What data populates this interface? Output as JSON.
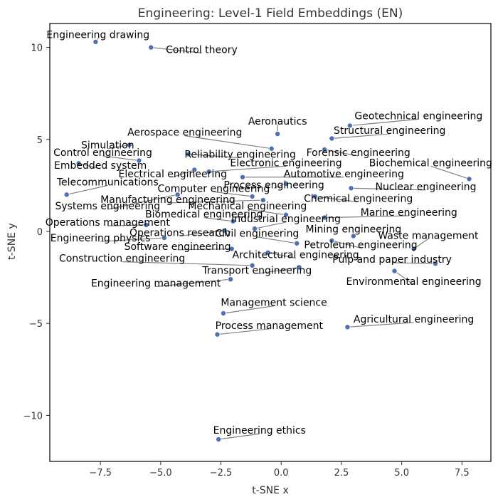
{
  "chart_data": {
    "type": "scatter",
    "title": "Engineering: Level-1 Field Embeddings (EN)",
    "xlabel": "t-SNE x",
    "ylabel": "t-SNE y",
    "xlim": [
      -9.6,
      8.7
    ],
    "ylim": [
      -12.5,
      11.3
    ],
    "xticks": [
      -7.5,
      -5.0,
      -2.5,
      0.0,
      2.5,
      5.0,
      7.5
    ],
    "xtick_labels": [
      "−7.5",
      "−5.0",
      "−2.5",
      "0.0",
      "2.5",
      "5.0",
      "7.5"
    ],
    "yticks": [
      -10,
      -5,
      0,
      5,
      10
    ],
    "ytick_labels": [
      "−10",
      "−5",
      "0",
      "5",
      "10"
    ],
    "grid": false,
    "point_color": "#4c72b0",
    "points": [
      {
        "label": "Engineering drawing",
        "x": -7.7,
        "y": 10.3,
        "lx": -7.6,
        "ly": 10.5
      },
      {
        "label": "Control theory",
        "x": -5.4,
        "y": 10.0,
        "lx": -3.3,
        "ly": 9.7
      },
      {
        "label": "Aeronautics",
        "x": -0.15,
        "y": 5.3,
        "lx": -0.15,
        "ly": 5.8
      },
      {
        "label": "Geotechnical engineering",
        "x": 2.85,
        "y": 5.75,
        "lx": 5.7,
        "ly": 6.1
      },
      {
        "label": "Structural engineering",
        "x": 2.1,
        "y": 5.05,
        "lx": 4.5,
        "ly": 5.3
      },
      {
        "label": "Aerospace engineering",
        "x": -0.4,
        "y": 4.5,
        "lx": -4.0,
        "ly": 5.2
      },
      {
        "label": "Forensic engineering",
        "x": 1.8,
        "y": 4.45,
        "lx": 3.2,
        "ly": 4.1
      },
      {
        "label": "Simulation",
        "x": -6.3,
        "y": 4.7,
        "lx": -7.2,
        "ly": 4.5
      },
      {
        "label": "Reliability engineering",
        "x": -3.85,
        "y": 4.2,
        "lx": -1.7,
        "ly": 4.0
      },
      {
        "label": "Control engineering",
        "x": -5.9,
        "y": 3.85,
        "lx": -7.4,
        "ly": 4.1
      },
      {
        "label": "Embedded system",
        "x": -8.4,
        "y": 3.7,
        "lx": -7.5,
        "ly": 3.4
      },
      {
        "label": "Electronic engineering",
        "x": -3.0,
        "y": 3.25,
        "lx": 0.2,
        "ly": 3.55
      },
      {
        "label": "Electrical engineering",
        "x": -3.6,
        "y": 3.35,
        "lx": -4.5,
        "ly": 2.95
      },
      {
        "label": "Biochemical engineering",
        "x": 7.8,
        "y": 2.85,
        "lx": 6.2,
        "ly": 3.55
      },
      {
        "label": "Automotive engineering",
        "x": -1.6,
        "y": 2.95,
        "lx": 2.6,
        "ly": 2.95
      },
      {
        "label": "Process engineering",
        "x": 0.2,
        "y": 2.6,
        "lx": -0.3,
        "ly": 2.35
      },
      {
        "label": "Telecommunications",
        "x": -8.9,
        "y": 2.0,
        "lx": -7.2,
        "ly": 2.5
      },
      {
        "label": "Nuclear engineering",
        "x": 2.9,
        "y": 2.35,
        "lx": 6.0,
        "ly": 2.25
      },
      {
        "label": "Computer engineering",
        "x": -1.2,
        "y": 1.9,
        "lx": -2.8,
        "ly": 2.15
      },
      {
        "label": "Manufacturing engineering",
        "x": -0.75,
        "y": 1.7,
        "lx": -4.7,
        "ly": 1.55
      },
      {
        "label": "Chemical engineering",
        "x": 1.4,
        "y": 1.9,
        "lx": 3.2,
        "ly": 1.6
      },
      {
        "label": "Systems engineering",
        "x": -4.3,
        "y": 2.0,
        "lx": -7.2,
        "ly": 1.2
      },
      {
        "label": "Mechanical engineering",
        "x": 0.2,
        "y": 0.9,
        "lx": -1.4,
        "ly": 1.2
      },
      {
        "label": "Marine engineering",
        "x": 1.8,
        "y": 0.75,
        "lx": 5.3,
        "ly": 0.85
      },
      {
        "label": "Biomedical engineering",
        "x": -2.0,
        "y": 0.55,
        "lx": -3.2,
        "ly": 0.75
      },
      {
        "label": "Industrial engineering",
        "x": -1.1,
        "y": 0.15,
        "lx": 0.2,
        "ly": 0.5
      },
      {
        "label": "Operations management",
        "x": -5.6,
        "y": 0.35,
        "lx": -7.2,
        "ly": 0.3
      },
      {
        "label": "Mining engineering",
        "x": 3.0,
        "y": -0.25,
        "lx": 3.0,
        "ly": -0.05
      },
      {
        "label": "Operations research",
        "x": -2.35,
        "y": 0.05,
        "lx": -4.2,
        "ly": -0.25
      },
      {
        "label": "Engineering physics",
        "x": -4.85,
        "y": -0.35,
        "lx": -7.5,
        "ly": -0.55
      },
      {
        "label": "Civil engineering",
        "x": 0.65,
        "y": -0.65,
        "lx": -1.0,
        "ly": -0.3
      },
      {
        "label": "Waste management",
        "x": 5.5,
        "y": -0.95,
        "lx": 6.1,
        "ly": -0.4
      },
      {
        "label": "Petroleum engineering",
        "x": 2.1,
        "y": -0.5,
        "lx": 3.3,
        "ly": -0.9
      },
      {
        "label": "Software engineering",
        "x": -2.05,
        "y": -0.95,
        "lx": -4.3,
        "ly": -1.0
      },
      {
        "label": "Architectural engineering",
        "x": -0.55,
        "y": -1.15,
        "lx": 0.6,
        "ly": -1.45
      },
      {
        "label": "Pulp and paper industry",
        "x": 6.4,
        "y": -1.75,
        "lx": 4.6,
        "ly": -1.7
      },
      {
        "label": "Construction engineering",
        "x": -1.2,
        "y": -1.85,
        "lx": -6.6,
        "ly": -1.65
      },
      {
        "label": "Transport engineering",
        "x": 0.75,
        "y": -1.95,
        "lx": -1.0,
        "ly": -2.3
      },
      {
        "label": "Environmental engineering",
        "x": 4.7,
        "y": -2.15,
        "lx": 5.5,
        "ly": -2.9
      },
      {
        "label": "Engineering management",
        "x": -2.1,
        "y": -2.6,
        "lx": -5.2,
        "ly": -3.0
      },
      {
        "label": "Management science",
        "x": -2.4,
        "y": -4.45,
        "lx": -0.3,
        "ly": -4.05
      },
      {
        "label": "Process management",
        "x": -2.65,
        "y": -5.6,
        "lx": -0.5,
        "ly": -5.3
      },
      {
        "label": "Agricultural engineering",
        "x": 2.75,
        "y": -5.2,
        "lx": 5.5,
        "ly": -4.95
      },
      {
        "label": "Engineering ethics",
        "x": -2.6,
        "y": -11.3,
        "lx": -0.9,
        "ly": -11.0
      }
    ]
  }
}
